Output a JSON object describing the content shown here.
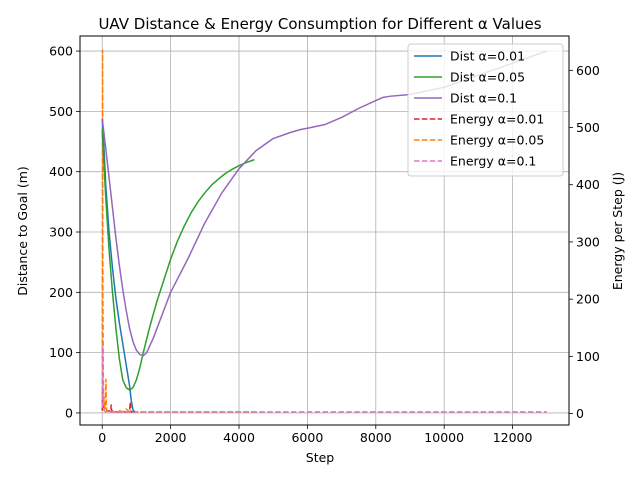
{
  "chart_data": {
    "type": "line",
    "title": "UAV Distance & Energy Consumption for Different α Values",
    "xlabel": "Step",
    "ylabel_left": "Distance to Goal (m)",
    "ylabel_right": "Energy per Step (J)",
    "xlim": [
      -650,
      13650
    ],
    "ylim_left": [
      -20,
      625
    ],
    "ylim_right": [
      -20,
      660
    ],
    "x_ticks": [
      0,
      2000,
      4000,
      6000,
      8000,
      10000,
      12000
    ],
    "y_ticks_left": [
      0,
      100,
      200,
      300,
      400,
      500,
      600
    ],
    "y_ticks_right": [
      0,
      100,
      200,
      300,
      400,
      500,
      600
    ],
    "grid": true,
    "legend_position": "upper right",
    "series": [
      {
        "name": "Dist α=0.01",
        "axis": "left",
        "style": "solid",
        "color": "#1f77b4",
        "x": [
          0,
          50,
          100,
          200,
          300,
          400,
          500,
          600,
          700,
          800,
          850,
          900,
          950
        ],
        "y": [
          488,
          440,
          380,
          300,
          240,
          190,
          150,
          115,
          80,
          45,
          20,
          5,
          2
        ]
      },
      {
        "name": "Dist α=0.05",
        "axis": "left",
        "style": "solid",
        "color": "#2ca02c",
        "x": [
          0,
          100,
          200,
          300,
          400,
          500,
          600,
          700,
          800,
          900,
          1000,
          1100,
          1200,
          1400,
          1600,
          1800,
          2000,
          2200,
          2400,
          2600,
          2800,
          3000,
          3200,
          3400,
          3600,
          3800,
          4000,
          4200,
          4400,
          4450
        ],
        "y": [
          470,
          360,
          270,
          200,
          140,
          90,
          55,
          42,
          38,
          42,
          55,
          75,
          100,
          145,
          185,
          220,
          255,
          285,
          310,
          332,
          350,
          365,
          378,
          388,
          397,
          404,
          410,
          415,
          419,
          420
        ]
      },
      {
        "name": "Dist α=0.1",
        "axis": "left",
        "style": "solid",
        "color": "#9467bd",
        "x": [
          0,
          100,
          200,
          300,
          400,
          500,
          600,
          700,
          800,
          900,
          1000,
          1100,
          1200,
          1300,
          1500,
          1800,
          2000,
          2500,
          3000,
          3500,
          4000,
          4500,
          5000,
          5500,
          5800,
          6000,
          6500,
          7000,
          7500,
          8000,
          8200,
          8400,
          9000,
          10000,
          11000,
          12000,
          13000
        ],
        "y": [
          488,
          440,
          390,
          340,
          290,
          245,
          205,
          170,
          140,
          118,
          104,
          97,
          95,
          100,
          125,
          170,
          200,
          255,
          315,
          365,
          405,
          435,
          455,
          465,
          470,
          472,
          478,
          490,
          505,
          518,
          523,
          525,
          528,
          540,
          560,
          580,
          600
        ]
      },
      {
        "name": "Energy α=0.01",
        "axis": "right",
        "style": "dashed",
        "color": "#d62728",
        "x": [
          0,
          10,
          20,
          40,
          60,
          80,
          100,
          150,
          200,
          250,
          260,
          280,
          300,
          400,
          500,
          600,
          700,
          800,
          820,
          840,
          900,
          950
        ],
        "y": [
          5,
          40,
          15,
          8,
          20,
          5,
          6,
          4,
          5,
          3,
          15,
          3,
          4,
          3,
          3,
          3,
          3,
          3,
          20,
          3,
          3,
          3
        ]
      },
      {
        "name": "Energy α=0.05",
        "axis": "right",
        "style": "dashed",
        "color": "#ff7f0e",
        "x": [
          0,
          5,
          10,
          20,
          30,
          40,
          60,
          80,
          100,
          110,
          120,
          140,
          160,
          200,
          300,
          400,
          500,
          600,
          700,
          800,
          1000,
          1500,
          2000,
          3000,
          4000,
          4450
        ],
        "y": [
          10,
          300,
          635,
          200,
          80,
          30,
          15,
          8,
          40,
          60,
          10,
          5,
          4,
          3,
          3,
          3,
          5,
          3,
          8,
          3,
          3,
          3,
          3,
          3,
          3,
          3
        ]
      },
      {
        "name": "Energy α=0.1",
        "axis": "right",
        "style": "dashed",
        "color": "#e377c2",
        "x": [
          0,
          5,
          10,
          20,
          30,
          40,
          60,
          80,
          100,
          200,
          500,
          1000,
          2000,
          4000,
          6000,
          8000,
          10000,
          12000,
          13000
        ],
        "y": [
          10,
          80,
          120,
          40,
          15,
          8,
          5,
          4,
          3,
          3,
          3,
          3,
          3,
          3,
          3,
          3,
          3,
          3,
          3
        ]
      }
    ]
  }
}
